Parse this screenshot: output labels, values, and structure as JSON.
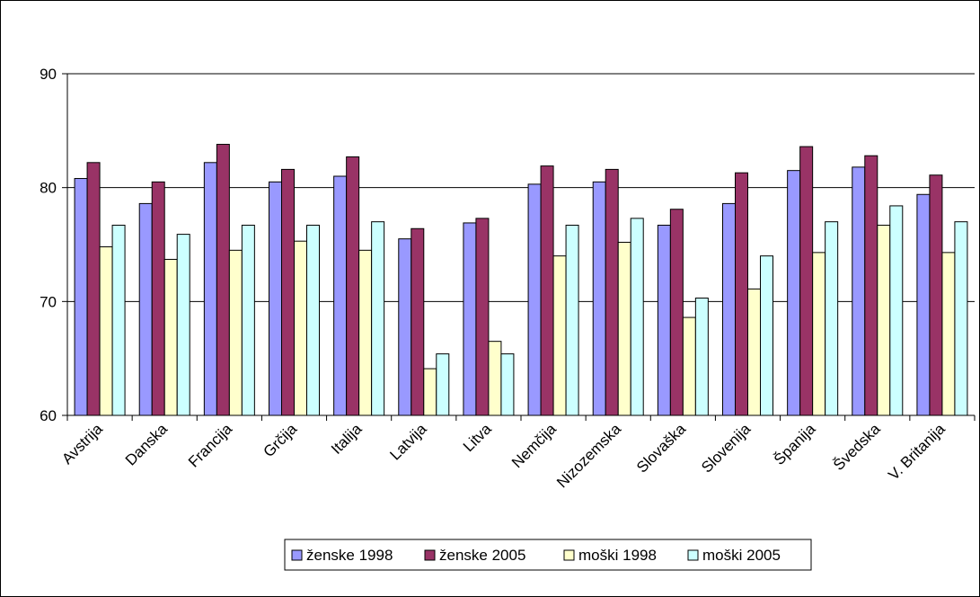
{
  "chart_data": {
    "type": "bar",
    "categories": [
      "Avstrija",
      "Danska",
      "Francija",
      "Grčija",
      "Italija",
      "Latvija",
      "Litva",
      "Nemčija",
      "Nizozemska",
      "Slovaška",
      "Slovenija",
      "Španija",
      "Švedska",
      "V. Britanija"
    ],
    "series": [
      {
        "name": "ženske 1998",
        "color": "#9999ff",
        "values": [
          80.8,
          78.6,
          82.2,
          80.5,
          81.0,
          75.5,
          76.9,
          80.3,
          80.5,
          76.7,
          78.6,
          81.5,
          81.8,
          79.4
        ]
      },
      {
        "name": "ženske 2005",
        "color": "#993366",
        "values": [
          82.2,
          80.5,
          83.8,
          81.6,
          82.7,
          76.4,
          77.3,
          81.9,
          81.6,
          78.1,
          81.3,
          83.6,
          82.8,
          81.1
        ]
      },
      {
        "name": "moški 1998",
        "color": "#ffffcc",
        "values": [
          74.8,
          73.7,
          74.5,
          75.3,
          74.5,
          64.1,
          66.5,
          74.0,
          75.2,
          68.6,
          71.1,
          74.3,
          76.7,
          74.3
        ]
      },
      {
        "name": "moški 2005",
        "color": "#ccffff",
        "values": [
          76.7,
          75.9,
          76.7,
          76.7,
          77.0,
          65.4,
          65.4,
          76.7,
          77.3,
          70.3,
          74.0,
          77.0,
          78.4,
          77.0
        ]
      }
    ],
    "yticks": [
      60,
      70,
      80,
      90
    ],
    "ylim": [
      60,
      90
    ],
    "grid": true,
    "legend": "bottom",
    "xlabel": "",
    "ylabel": ""
  }
}
